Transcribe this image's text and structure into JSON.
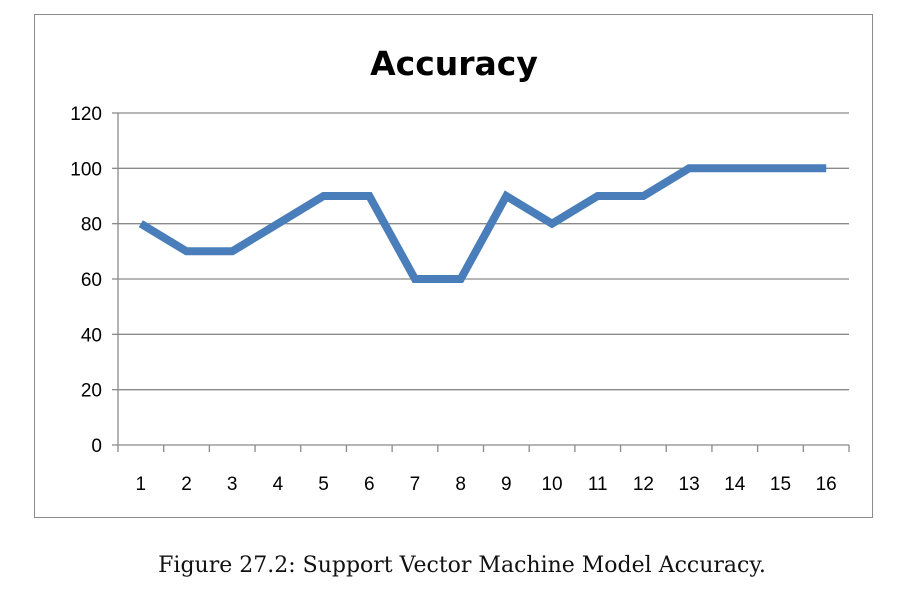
{
  "chart_data": {
    "type": "line",
    "title": "Accuracy",
    "xlabel": "",
    "ylabel": "",
    "categories": [
      "1",
      "2",
      "3",
      "4",
      "5",
      "6",
      "7",
      "8",
      "9",
      "10",
      "11",
      "12",
      "13",
      "14",
      "15",
      "16"
    ],
    "series": [
      {
        "values": [
          80,
          70,
          70,
          80,
          90,
          90,
          60,
          60,
          90,
          80,
          90,
          90,
          100,
          100,
          100,
          100
        ],
        "color": "#4a7ebb"
      }
    ],
    "yticks": [
      0,
      20,
      40,
      60,
      80,
      100,
      120
    ],
    "ylim": [
      0,
      120
    ],
    "grid": true,
    "legend": "none"
  },
  "caption": "Figure 27.2: Support Vector Machine Model Accuracy."
}
